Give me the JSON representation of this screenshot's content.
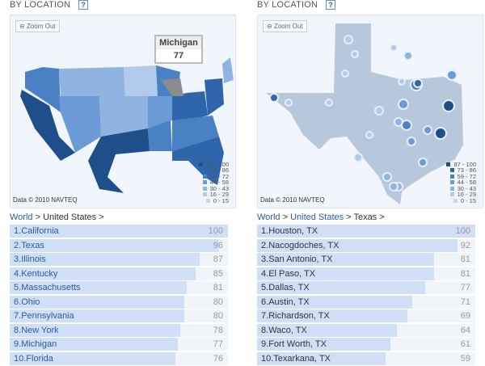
{
  "left": {
    "header": "BY LOCATION",
    "help": "?",
    "zoom_out": "Zoom Out",
    "tooltip": {
      "title": "Michigan",
      "value": "77"
    },
    "credit": "Data © 2010 NAVTEQ",
    "legend": [
      {
        "range": "87 - 100",
        "color": "#1f4f8a"
      },
      {
        "range": "73 -  86",
        "color": "#2f66ab"
      },
      {
        "range": "59 -  72",
        "color": "#4a80c4"
      },
      {
        "range": "44 -  58",
        "color": "#6b9bd6"
      },
      {
        "range": "30 -  43",
        "color": "#8fb4e2"
      },
      {
        "range": "16 -  29",
        "color": "#b2cbeb"
      },
      {
        "range": "0 -  15",
        "color": "#c8d6e8"
      }
    ],
    "breadcrumb": {
      "world": "World",
      "sep1": " > ",
      "country": "United States",
      "sep2": " >"
    },
    "items": [
      {
        "rank": "1.",
        "name": "California",
        "value": 100
      },
      {
        "rank": "2.",
        "name": "Texas",
        "value": 96
      },
      {
        "rank": "3.",
        "name": "Illinois",
        "value": 87
      },
      {
        "rank": "4.",
        "name": "Kentucky",
        "value": 85
      },
      {
        "rank": "5.",
        "name": "Massachusetts",
        "value": 81
      },
      {
        "rank": "6.",
        "name": "Ohio",
        "value": 80
      },
      {
        "rank": "7.",
        "name": "Pennsylvania",
        "value": 80
      },
      {
        "rank": "8.",
        "name": "New York",
        "value": 78
      },
      {
        "rank": "9.",
        "name": "Michigan",
        "value": 77
      },
      {
        "rank": "10.",
        "name": "Florida",
        "value": 76
      }
    ]
  },
  "right": {
    "header": "BY LOCATION",
    "help": "?",
    "zoom_out": "Zoom Out",
    "credit": "Data © 2010 NAVTEQ",
    "breadcrumb": {
      "world": "World",
      "sep1": " > ",
      "country": "United States",
      "sep2": " > ",
      "state": "Texas",
      "sep3": " >"
    },
    "items": [
      {
        "rank": "1.",
        "name": "Houston, TX",
        "value": 100
      },
      {
        "rank": "2.",
        "name": "Nacogdoches, TX",
        "value": 92
      },
      {
        "rank": "3.",
        "name": "San Antonio, TX",
        "value": 81
      },
      {
        "rank": "4.",
        "name": "El Paso, TX",
        "value": 81
      },
      {
        "rank": "5.",
        "name": "Dallas, TX",
        "value": 77
      },
      {
        "rank": "6.",
        "name": "Austin, TX",
        "value": 71
      },
      {
        "rank": "7.",
        "name": "Richardson, TX",
        "value": 69
      },
      {
        "rank": "8.",
        "name": "Waco, TX",
        "value": 64
      },
      {
        "rank": "9.",
        "name": "Fort Worth, TX",
        "value": 61
      },
      {
        "rank": "10.",
        "name": "Texarkana, TX",
        "value": 59
      }
    ]
  }
}
